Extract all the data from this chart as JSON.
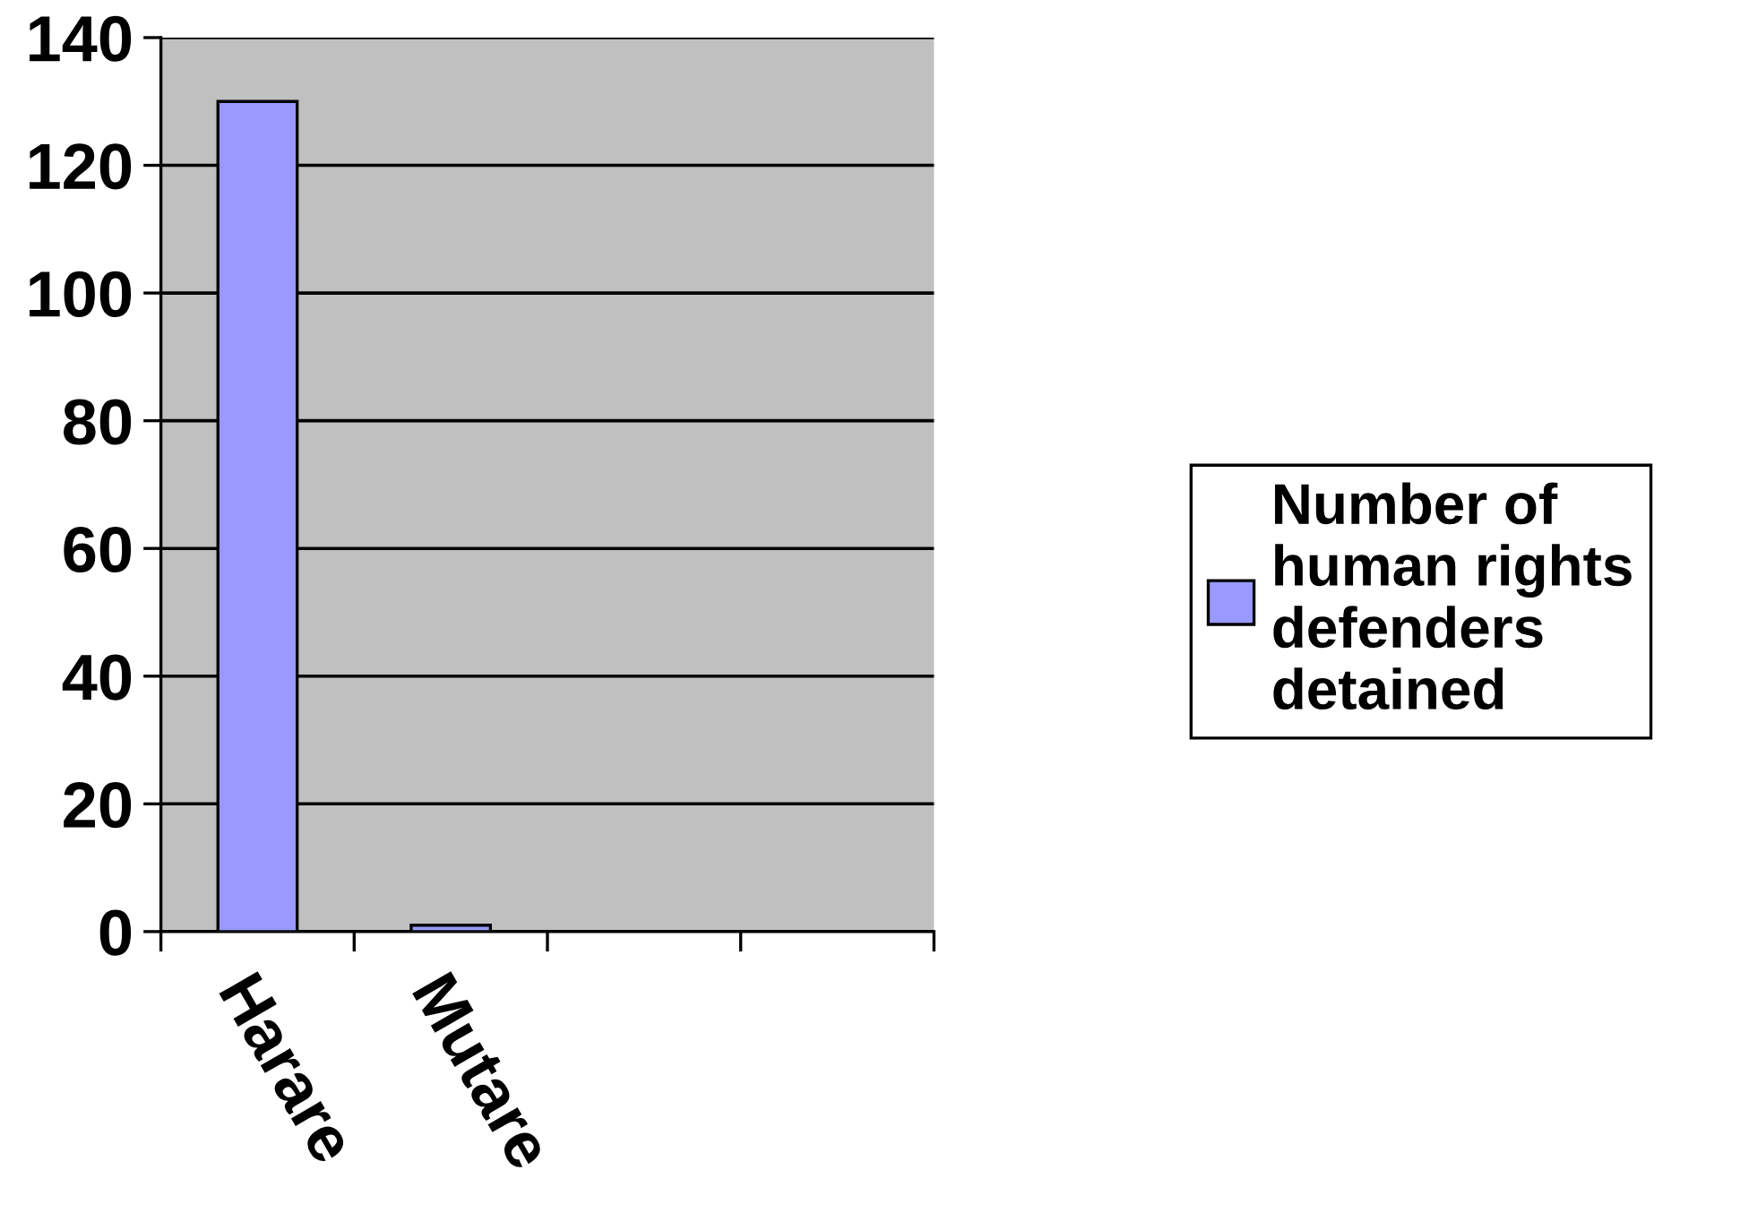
{
  "chart_data": {
    "type": "bar",
    "categories": [
      "Harare",
      "Mutare",
      null,
      null
    ],
    "series": [
      {
        "name": "Number of\nhuman rights\ndefenders\ndetained",
        "color": "#9999ff",
        "values": [
          130,
          1,
          null,
          null
        ]
      }
    ],
    "ylim": [
      0,
      140
    ],
    "yticks": [
      0,
      20,
      40,
      60,
      80,
      100,
      120,
      140
    ],
    "grid": "y",
    "legend": "right"
  }
}
